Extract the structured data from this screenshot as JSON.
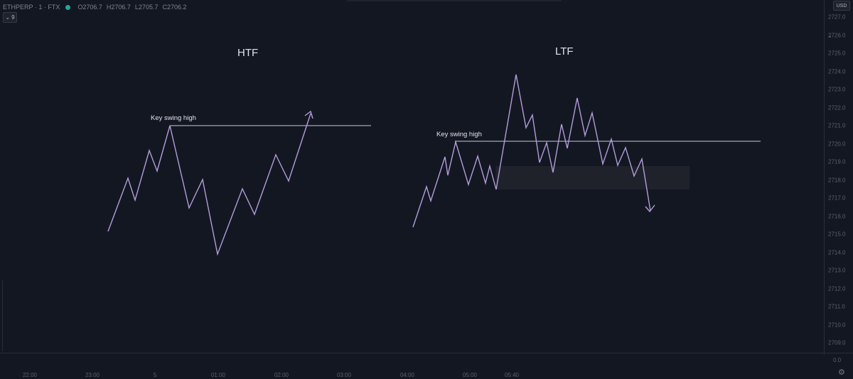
{
  "header": {
    "symbol": "ETHPERP · 1 · FTX",
    "open": "O2706.7",
    "high": "H2706.7",
    "low": "L2705.7",
    "close": "C2706.2",
    "indicator_count": "9"
  },
  "price_axis": {
    "currency": "USD",
    "ticks": [
      "2727.0",
      "2726.0",
      "2725.0",
      "2724.0",
      "2723.0",
      "2722.0",
      "2721.0",
      "2720.0",
      "2719.0",
      "2718.0",
      "2717.0",
      "2716.0",
      "2715.0",
      "2714.0",
      "2713.0",
      "2712.0",
      "2711.0",
      "2710.0",
      "2709.0"
    ],
    "zero_label": "0.0"
  },
  "time_axis": {
    "ticks": [
      "22:00",
      "23:00",
      "5",
      "01:00",
      "02:00",
      "03:00",
      "04:00",
      "05:00",
      "05:40"
    ]
  },
  "annotations": {
    "htf_title": "HTF",
    "ltf_title": "LTF",
    "htf_swing_label": "Key swing high",
    "ltf_swing_label": "Key swing high"
  },
  "colors": {
    "background": "#131722",
    "path_line": "#b39ddb",
    "swing_line": "#c8c8d8",
    "zone_fill": "#1f222b",
    "live_dot": "#26a69a"
  }
}
